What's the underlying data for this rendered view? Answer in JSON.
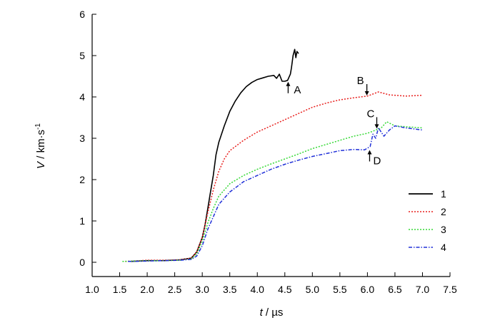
{
  "chart_data": {
    "type": "line",
    "xlabel": {
      "var": "t",
      "unit": " / µs"
    },
    "ylabel": {
      "var": "V",
      "unit": " / km·s",
      "sup": "-1"
    },
    "xlim": [
      1.0,
      7.5
    ],
    "ylim": [
      0,
      6
    ],
    "x_ticks": [
      1.0,
      1.5,
      2.0,
      2.5,
      3.0,
      3.5,
      4.0,
      4.5,
      5.0,
      5.5,
      6.0,
      6.5,
      7.0,
      7.5
    ],
    "x_tick_labels": [
      "1.0",
      "1.5",
      "2.0",
      "2.5",
      "3.0",
      "3.5",
      "4.0",
      "4.5",
      "5.0",
      "5.5",
      "6.0",
      "6.5",
      "7.0",
      "7.5"
    ],
    "y_ticks": [
      0,
      1,
      2,
      3,
      4,
      5,
      6
    ],
    "y_tick_labels": [
      "0",
      "1",
      "2",
      "3",
      "4",
      "5",
      "6"
    ],
    "grid": false,
    "legend_position": "right",
    "series": [
      {
        "name": "1",
        "color": "#000000",
        "dash": "solid",
        "points": [
          [
            1.7,
            0.02
          ],
          [
            2.0,
            0.04
          ],
          [
            2.3,
            0.04
          ],
          [
            2.6,
            0.06
          ],
          [
            2.8,
            0.1
          ],
          [
            2.9,
            0.25
          ],
          [
            3.0,
            0.6
          ],
          [
            3.05,
            0.9
          ],
          [
            3.1,
            1.3
          ],
          [
            3.15,
            1.7
          ],
          [
            3.2,
            2.1
          ],
          [
            3.25,
            2.6
          ],
          [
            3.3,
            2.9
          ],
          [
            3.4,
            3.3
          ],
          [
            3.5,
            3.65
          ],
          [
            3.6,
            3.9
          ],
          [
            3.7,
            4.1
          ],
          [
            3.8,
            4.25
          ],
          [
            3.9,
            4.35
          ],
          [
            4.0,
            4.42
          ],
          [
            4.1,
            4.46
          ],
          [
            4.2,
            4.5
          ],
          [
            4.3,
            4.52
          ],
          [
            4.35,
            4.45
          ],
          [
            4.4,
            4.55
          ],
          [
            4.45,
            4.38
          ],
          [
            4.5,
            4.38
          ],
          [
            4.55,
            4.4
          ],
          [
            4.6,
            4.55
          ],
          [
            4.62,
            4.7
          ],
          [
            4.65,
            5.0
          ],
          [
            4.68,
            5.15
          ],
          [
            4.7,
            4.95
          ],
          [
            4.72,
            5.1
          ],
          [
            4.75,
            5.05
          ]
        ]
      },
      {
        "name": "2",
        "color": "#e8201e",
        "dash": "dotted",
        "points": [
          [
            1.6,
            0.02
          ],
          [
            2.0,
            0.05
          ],
          [
            2.3,
            0.05
          ],
          [
            2.6,
            0.06
          ],
          [
            2.8,
            0.1
          ],
          [
            2.9,
            0.25
          ],
          [
            3.0,
            0.6
          ],
          [
            3.1,
            1.2
          ],
          [
            3.2,
            1.75
          ],
          [
            3.3,
            2.2
          ],
          [
            3.4,
            2.5
          ],
          [
            3.5,
            2.7
          ],
          [
            3.75,
            2.95
          ],
          [
            4.0,
            3.15
          ],
          [
            4.25,
            3.3
          ],
          [
            4.5,
            3.45
          ],
          [
            4.75,
            3.6
          ],
          [
            5.0,
            3.75
          ],
          [
            5.25,
            3.85
          ],
          [
            5.5,
            3.93
          ],
          [
            5.75,
            3.98
          ],
          [
            6.0,
            4.02
          ],
          [
            6.2,
            4.12
          ],
          [
            6.4,
            4.05
          ],
          [
            6.7,
            4.02
          ],
          [
            7.0,
            4.04
          ]
        ]
      },
      {
        "name": "3",
        "color": "#36d936",
        "dash": "dotted",
        "points": [
          [
            1.55,
            0.02
          ],
          [
            2.0,
            0.04
          ],
          [
            2.3,
            0.04
          ],
          [
            2.6,
            0.05
          ],
          [
            2.8,
            0.08
          ],
          [
            2.9,
            0.2
          ],
          [
            3.0,
            0.5
          ],
          [
            3.1,
            0.95
          ],
          [
            3.2,
            1.3
          ],
          [
            3.3,
            1.6
          ],
          [
            3.5,
            1.9
          ],
          [
            3.75,
            2.1
          ],
          [
            4.0,
            2.25
          ],
          [
            4.25,
            2.38
          ],
          [
            4.5,
            2.5
          ],
          [
            4.75,
            2.62
          ],
          [
            5.0,
            2.75
          ],
          [
            5.25,
            2.85
          ],
          [
            5.5,
            2.95
          ],
          [
            5.75,
            3.05
          ],
          [
            6.0,
            3.12
          ],
          [
            6.25,
            3.25
          ],
          [
            6.35,
            3.4
          ],
          [
            6.5,
            3.3
          ],
          [
            6.7,
            3.28
          ],
          [
            7.0,
            3.25
          ]
        ]
      },
      {
        "name": "4",
        "color": "#2030d8",
        "dash": "dashdot",
        "points": [
          [
            1.65,
            0.02
          ],
          [
            2.0,
            0.03
          ],
          [
            2.3,
            0.04
          ],
          [
            2.6,
            0.05
          ],
          [
            2.8,
            0.07
          ],
          [
            2.9,
            0.15
          ],
          [
            3.0,
            0.4
          ],
          [
            3.1,
            0.8
          ],
          [
            3.2,
            1.1
          ],
          [
            3.3,
            1.4
          ],
          [
            3.5,
            1.7
          ],
          [
            3.75,
            1.95
          ],
          [
            4.0,
            2.1
          ],
          [
            4.25,
            2.25
          ],
          [
            4.5,
            2.37
          ],
          [
            4.75,
            2.47
          ],
          [
            5.0,
            2.56
          ],
          [
            5.25,
            2.63
          ],
          [
            5.5,
            2.7
          ],
          [
            5.75,
            2.73
          ],
          [
            5.95,
            2.72
          ],
          [
            6.05,
            2.8
          ],
          [
            6.1,
            3.1
          ],
          [
            6.15,
            3.0
          ],
          [
            6.2,
            3.25
          ],
          [
            6.3,
            3.05
          ],
          [
            6.4,
            3.2
          ],
          [
            6.5,
            3.3
          ],
          [
            6.7,
            3.25
          ],
          [
            7.0,
            3.2
          ]
        ]
      }
    ],
    "annotations": [
      {
        "label": "A",
        "x": 4.56,
        "y": 4.4,
        "dir": "up"
      },
      {
        "label": "B",
        "x": 5.99,
        "y": 4.0,
        "dir": "down"
      },
      {
        "label": "C",
        "x": 6.17,
        "y": 3.2,
        "dir": "down"
      },
      {
        "label": "D",
        "x": 6.04,
        "y": 2.75,
        "dir": "up"
      }
    ]
  }
}
